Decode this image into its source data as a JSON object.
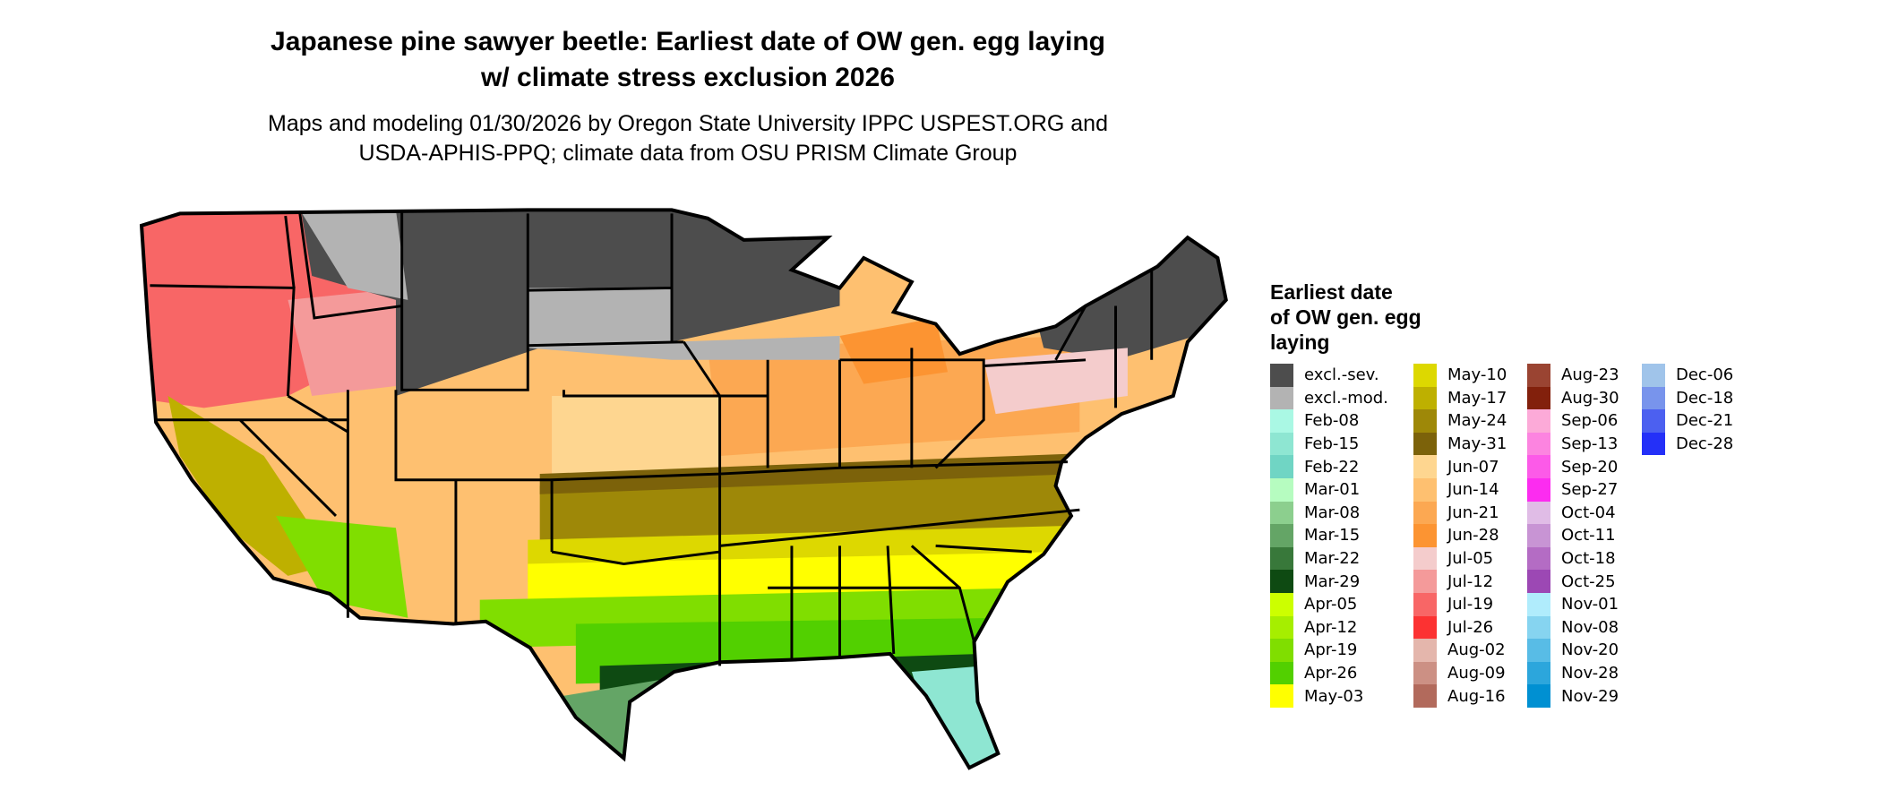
{
  "title": {
    "line1": "Japanese pine sawyer beetle: Earliest date of OW gen. egg laying",
    "line2": "w/ climate stress exclusion 2026"
  },
  "subtitle": {
    "line1": "Maps and modeling 01/30/2026 by Oregon State University IPPC USPEST.ORG and",
    "line2": "USDA-APHIS-PPQ; climate data from OSU PRISM Climate Group"
  },
  "legend": {
    "title_lines": [
      "Earliest date",
      "of OW gen. egg",
      "laying"
    ],
    "columns": [
      [
        {
          "label": "excl.-sev.",
          "color": "#4d4d4d"
        },
        {
          "label": "excl.-mod.",
          "color": "#b3b3b3"
        },
        {
          "label": "Feb-08",
          "color": "#aaf8e4"
        },
        {
          "label": "Feb-15",
          "color": "#8ee6d2"
        },
        {
          "label": "Feb-22",
          "color": "#70d5c4"
        },
        {
          "label": "Mar-01",
          "color": "#b6fcc0"
        },
        {
          "label": "Mar-08",
          "color": "#8ccf8e"
        },
        {
          "label": "Mar-15",
          "color": "#64a566"
        },
        {
          "label": "Mar-22",
          "color": "#38783a"
        },
        {
          "label": "Mar-29",
          "color": "#0e4a12"
        },
        {
          "label": "Apr-05",
          "color": "#ccff00"
        },
        {
          "label": "Apr-12",
          "color": "#a6ee00"
        },
        {
          "label": "Apr-19",
          "color": "#80de00"
        },
        {
          "label": "Apr-26",
          "color": "#52d000"
        },
        {
          "label": "May-03",
          "color": "#ffff00"
        }
      ],
      [
        {
          "label": "May-10",
          "color": "#ddd800"
        },
        {
          "label": "May-17",
          "color": "#beb000"
        },
        {
          "label": "May-24",
          "color": "#9e8808"
        },
        {
          "label": "May-31",
          "color": "#7c620a"
        },
        {
          "label": "Jun-07",
          "color": "#fed690"
        },
        {
          "label": "Jun-14",
          "color": "#fec070"
        },
        {
          "label": "Jun-21",
          "color": "#fca852"
        },
        {
          "label": "Jun-28",
          "color": "#fc9432"
        },
        {
          "label": "Jul-05",
          "color": "#f4cccc"
        },
        {
          "label": "Jul-12",
          "color": "#f49a9a"
        },
        {
          "label": "Jul-19",
          "color": "#f86666"
        },
        {
          "label": "Jul-26",
          "color": "#fc3232"
        },
        {
          "label": "Aug-02",
          "color": "#e4b6ac"
        },
        {
          "label": "Aug-09",
          "color": "#cc9084"
        },
        {
          "label": "Aug-16",
          "color": "#b26a5c"
        }
      ],
      [
        {
          "label": "Aug-23",
          "color": "#9a4432"
        },
        {
          "label": "Aug-30",
          "color": "#82200c"
        },
        {
          "label": "Sep-06",
          "color": "#fcaad8"
        },
        {
          "label": "Sep-13",
          "color": "#fc84e0"
        },
        {
          "label": "Sep-20",
          "color": "#fc5ae8"
        },
        {
          "label": "Sep-27",
          "color": "#fc2cf0"
        },
        {
          "label": "Oct-04",
          "color": "#e0bce6"
        },
        {
          "label": "Oct-11",
          "color": "#c894d4"
        },
        {
          "label": "Oct-18",
          "color": "#b46cc4"
        },
        {
          "label": "Oct-25",
          "color": "#9c48b4"
        },
        {
          "label": "Nov-01",
          "color": "#b0ecfc"
        },
        {
          "label": "Nov-08",
          "color": "#86d4f0"
        },
        {
          "label": "Nov-20",
          "color": "#58bce6"
        },
        {
          "label": "Nov-28",
          "color": "#2ca6dc"
        },
        {
          "label": "Nov-29",
          "color": "#0090d2"
        }
      ],
      [
        {
          "label": "Dec-06",
          "color": "#a0c4ea"
        },
        {
          "label": "Dec-18",
          "color": "#7894ec"
        },
        {
          "label": "Dec-21",
          "color": "#4c60f0"
        },
        {
          "label": "Dec-28",
          "color": "#2430f8"
        }
      ]
    ]
  }
}
